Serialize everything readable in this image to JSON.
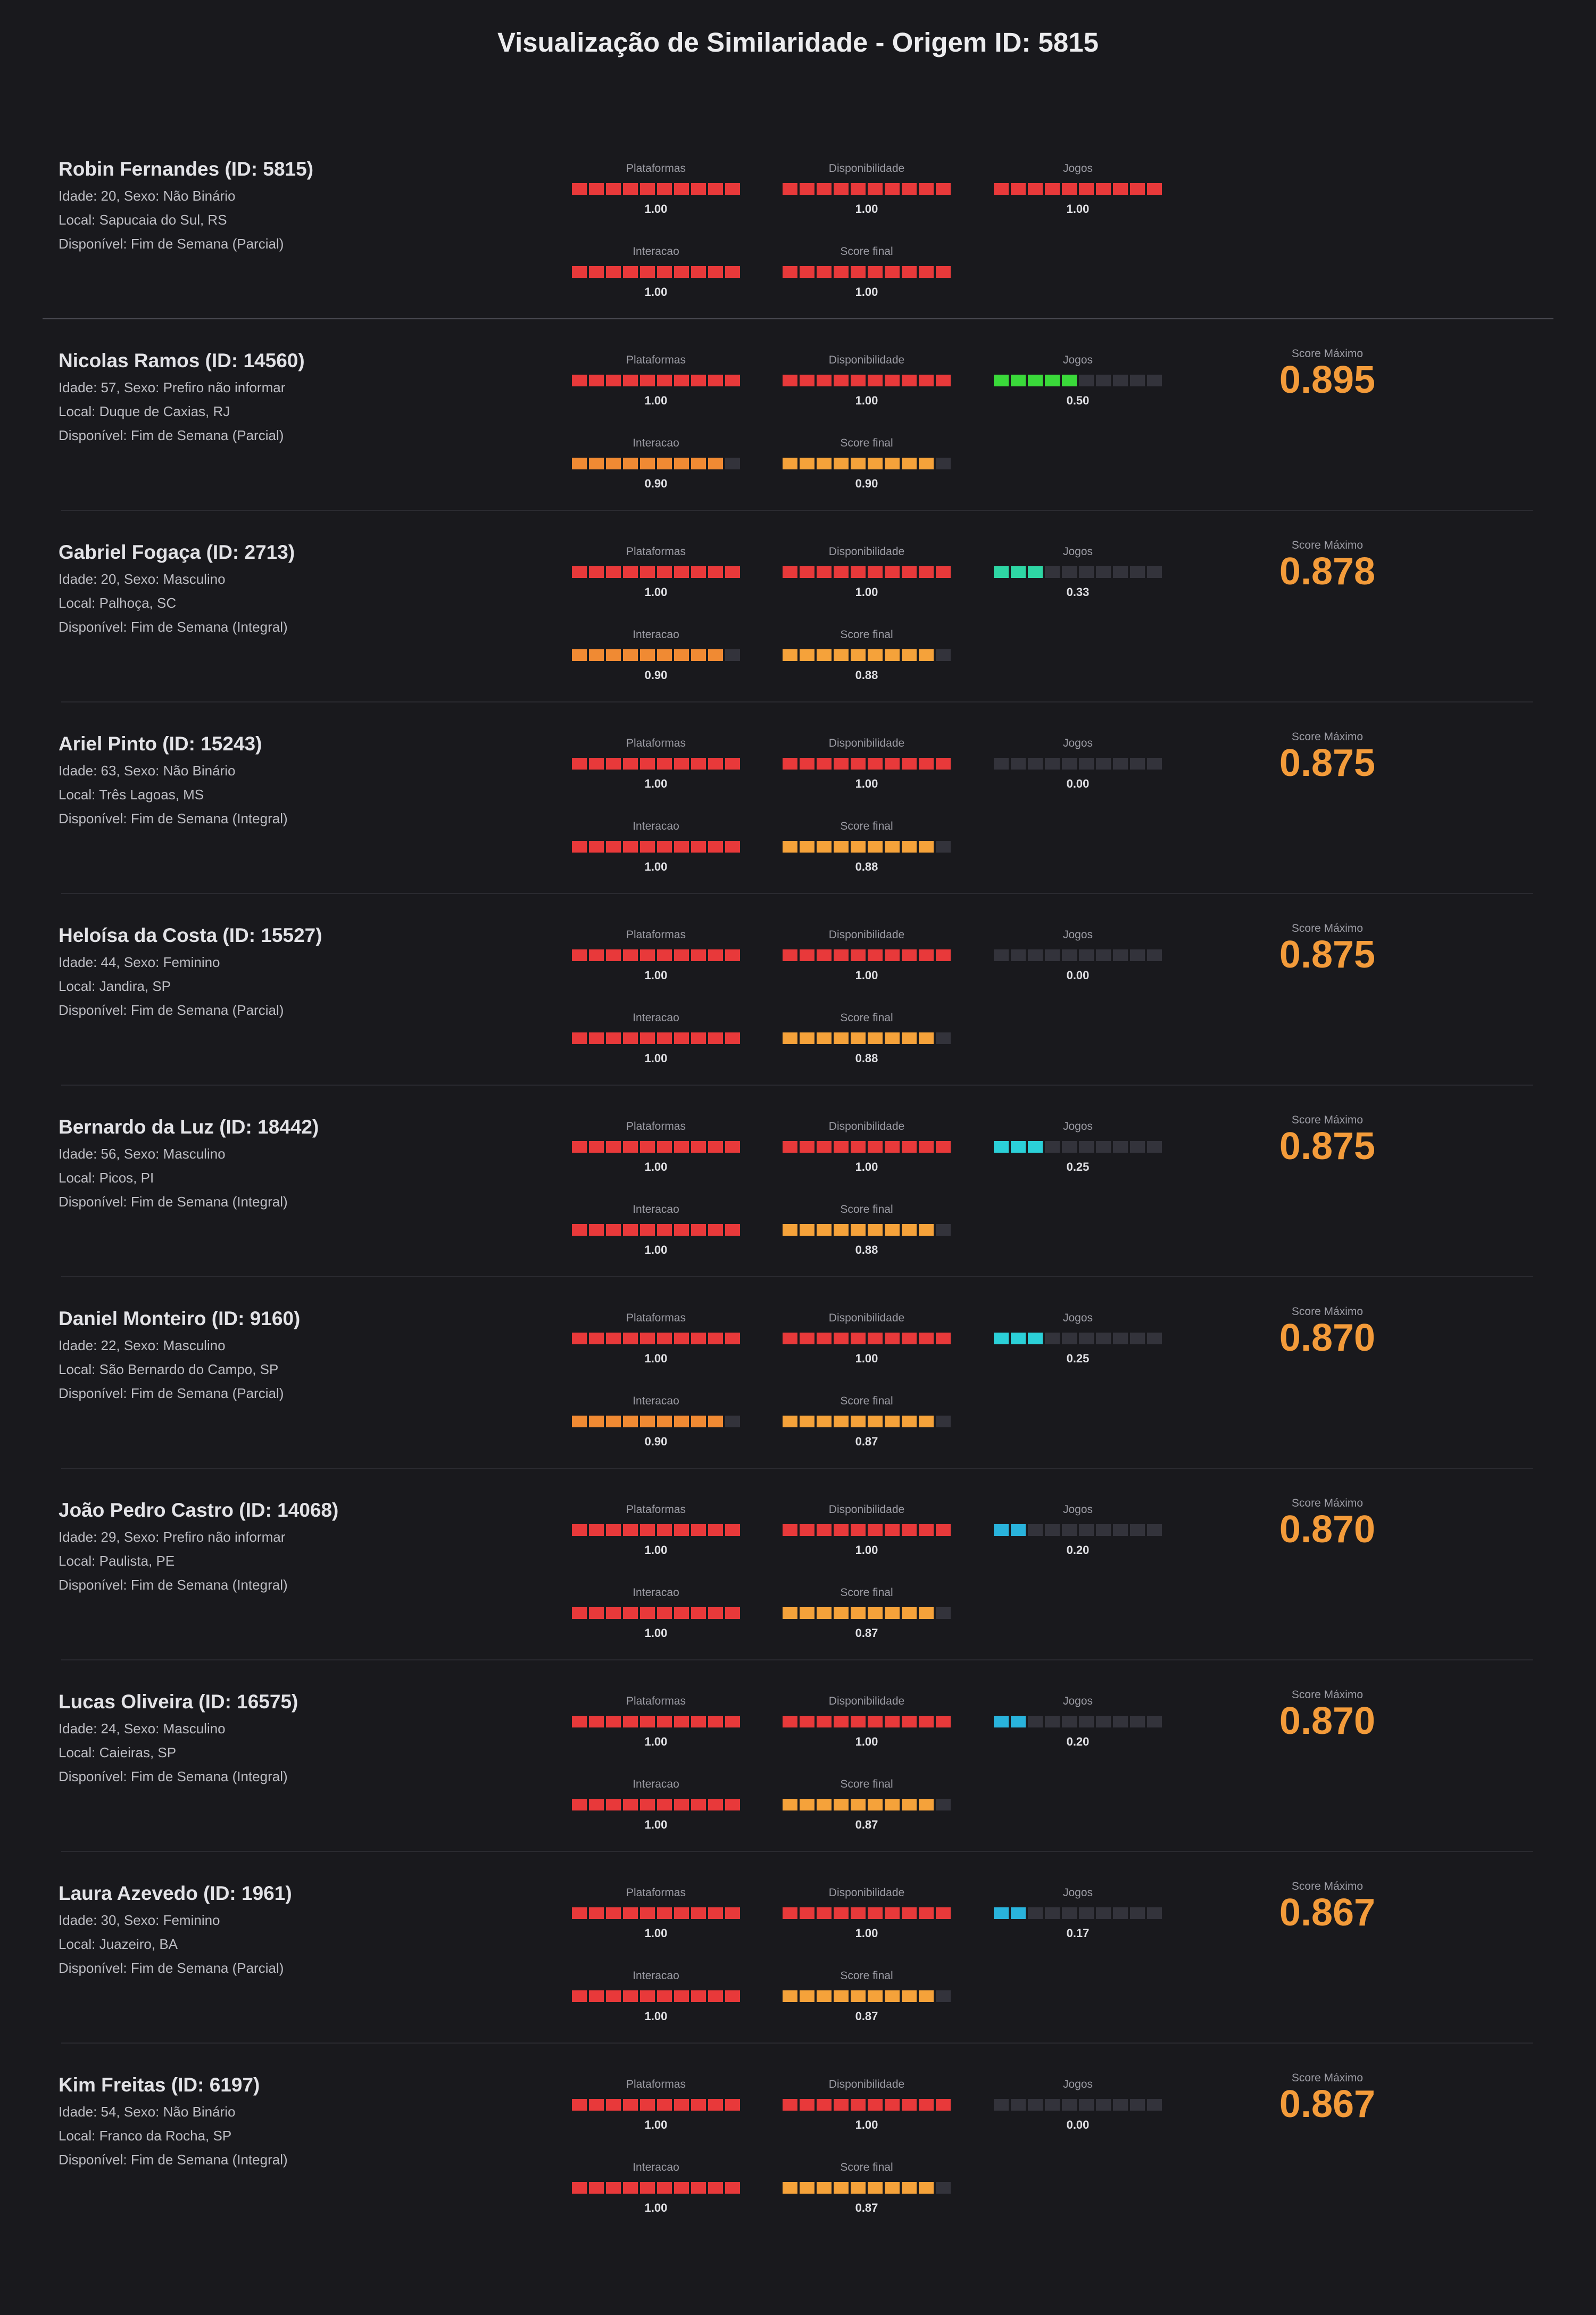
{
  "title": "Visualização de Similaridade - Origem ID: 5815",
  "labels": {
    "plataformas": "Plataformas",
    "disponibilidade": "Disponibilidade",
    "jogos": "Jogos",
    "interacao": "Interacao",
    "score_final": "Score final",
    "score_maximo": "Score Máximo"
  },
  "colors": {
    "red": "#e8393a",
    "orange": "#f08a33",
    "orange_light": "#f5a23a",
    "green": "#3ad93a",
    "teal": "#2ed6a4",
    "cyan": "#2bd0d8",
    "blue_cyan": "#29b3dc",
    "empty": "#33333b",
    "score": "#f39b3a"
  },
  "origin": {
    "name": "Robin Fernandes (ID: 5815)",
    "line1": "Idade: 20, Sexo: Não Binário",
    "line2": "Local: Sapucaia do Sul, RS",
    "line3": "Disponível: Fim de Semana (Parcial)",
    "plataformas": {
      "value": 1.0,
      "text": "1.00",
      "color": "red"
    },
    "disponibilidade": {
      "value": 1.0,
      "text": "1.00",
      "color": "red"
    },
    "jogos": {
      "value": 1.0,
      "text": "1.00",
      "color": "red"
    },
    "interacao": {
      "value": 1.0,
      "text": "1.00",
      "color": "red"
    },
    "score_final": {
      "value": 1.0,
      "text": "1.00",
      "color": "red"
    }
  },
  "matches": [
    {
      "name": "Nicolas Ramos (ID: 14560)",
      "line1": "Idade: 57, Sexo: Prefiro não informar",
      "line2": "Local: Duque de Caxias, RJ",
      "line3": "Disponível: Fim de Semana (Parcial)",
      "plataformas": {
        "value": 1.0,
        "text": "1.00",
        "color": "red"
      },
      "disponibilidade": {
        "value": 1.0,
        "text": "1.00",
        "color": "red"
      },
      "jogos": {
        "value": 0.5,
        "text": "0.50",
        "color": "green"
      },
      "interacao": {
        "value": 0.9,
        "text": "0.90",
        "color": "orange"
      },
      "score_final": {
        "value": 0.9,
        "text": "0.90",
        "color": "orange_light"
      },
      "score_max": "0.895"
    },
    {
      "name": "Gabriel Fogaça (ID: 2713)",
      "line1": "Idade: 20, Sexo: Masculino",
      "line2": "Local: Palhoça, SC",
      "line3": "Disponível: Fim de Semana (Integral)",
      "plataformas": {
        "value": 1.0,
        "text": "1.00",
        "color": "red"
      },
      "disponibilidade": {
        "value": 1.0,
        "text": "1.00",
        "color": "red"
      },
      "jogos": {
        "value": 0.33,
        "text": "0.33",
        "color": "teal"
      },
      "interacao": {
        "value": 0.9,
        "text": "0.90",
        "color": "orange"
      },
      "score_final": {
        "value": 0.88,
        "text": "0.88",
        "color": "orange_light"
      },
      "score_max": "0.878"
    },
    {
      "name": "Ariel Pinto (ID: 15243)",
      "line1": "Idade: 63, Sexo: Não Binário",
      "line2": "Local: Três Lagoas, MS",
      "line3": "Disponível: Fim de Semana (Integral)",
      "plataformas": {
        "value": 1.0,
        "text": "1.00",
        "color": "red"
      },
      "disponibilidade": {
        "value": 1.0,
        "text": "1.00",
        "color": "red"
      },
      "jogos": {
        "value": 0.0,
        "text": "0.00",
        "color": "empty"
      },
      "interacao": {
        "value": 1.0,
        "text": "1.00",
        "color": "red"
      },
      "score_final": {
        "value": 0.88,
        "text": "0.88",
        "color": "orange_light"
      },
      "score_max": "0.875"
    },
    {
      "name": "Heloísa da Costa (ID: 15527)",
      "line1": "Idade: 44, Sexo: Feminino",
      "line2": "Local: Jandira, SP",
      "line3": "Disponível: Fim de Semana (Parcial)",
      "plataformas": {
        "value": 1.0,
        "text": "1.00",
        "color": "red"
      },
      "disponibilidade": {
        "value": 1.0,
        "text": "1.00",
        "color": "red"
      },
      "jogos": {
        "value": 0.0,
        "text": "0.00",
        "color": "empty"
      },
      "interacao": {
        "value": 1.0,
        "text": "1.00",
        "color": "red"
      },
      "score_final": {
        "value": 0.88,
        "text": "0.88",
        "color": "orange_light"
      },
      "score_max": "0.875"
    },
    {
      "name": "Bernardo da Luz (ID: 18442)",
      "line1": "Idade: 56, Sexo: Masculino",
      "line2": "Local: Picos, PI",
      "line3": "Disponível: Fim de Semana (Integral)",
      "plataformas": {
        "value": 1.0,
        "text": "1.00",
        "color": "red"
      },
      "disponibilidade": {
        "value": 1.0,
        "text": "1.00",
        "color": "red"
      },
      "jogos": {
        "value": 0.25,
        "text": "0.25",
        "color": "cyan"
      },
      "interacao": {
        "value": 1.0,
        "text": "1.00",
        "color": "red"
      },
      "score_final": {
        "value": 0.88,
        "text": "0.88",
        "color": "orange_light"
      },
      "score_max": "0.875"
    },
    {
      "name": "Daniel Monteiro (ID: 9160)",
      "line1": "Idade: 22, Sexo: Masculino",
      "line2": "Local: São Bernardo do Campo, SP",
      "line3": "Disponível: Fim de Semana (Parcial)",
      "plataformas": {
        "value": 1.0,
        "text": "1.00",
        "color": "red"
      },
      "disponibilidade": {
        "value": 1.0,
        "text": "1.00",
        "color": "red"
      },
      "jogos": {
        "value": 0.25,
        "text": "0.25",
        "color": "cyan"
      },
      "interacao": {
        "value": 0.9,
        "text": "0.90",
        "color": "orange"
      },
      "score_final": {
        "value": 0.87,
        "text": "0.87",
        "color": "orange_light"
      },
      "score_max": "0.870"
    },
    {
      "name": "João Pedro Castro (ID: 14068)",
      "line1": "Idade: 29, Sexo: Prefiro não informar",
      "line2": "Local: Paulista, PE",
      "line3": "Disponível: Fim de Semana (Integral)",
      "plataformas": {
        "value": 1.0,
        "text": "1.00",
        "color": "red"
      },
      "disponibilidade": {
        "value": 1.0,
        "text": "1.00",
        "color": "red"
      },
      "jogos": {
        "value": 0.2,
        "text": "0.20",
        "color": "blue_cyan"
      },
      "interacao": {
        "value": 1.0,
        "text": "1.00",
        "color": "red"
      },
      "score_final": {
        "value": 0.87,
        "text": "0.87",
        "color": "orange_light"
      },
      "score_max": "0.870"
    },
    {
      "name": "Lucas Oliveira (ID: 16575)",
      "line1": "Idade: 24, Sexo: Masculino",
      "line2": "Local: Caieiras, SP",
      "line3": "Disponível: Fim de Semana (Integral)",
      "plataformas": {
        "value": 1.0,
        "text": "1.00",
        "color": "red"
      },
      "disponibilidade": {
        "value": 1.0,
        "text": "1.00",
        "color": "red"
      },
      "jogos": {
        "value": 0.2,
        "text": "0.20",
        "color": "blue_cyan"
      },
      "interacao": {
        "value": 1.0,
        "text": "1.00",
        "color": "red"
      },
      "score_final": {
        "value": 0.87,
        "text": "0.87",
        "color": "orange_light"
      },
      "score_max": "0.870"
    },
    {
      "name": "Laura Azevedo (ID: 1961)",
      "line1": "Idade: 30, Sexo: Feminino",
      "line2": "Local: Juazeiro, BA",
      "line3": "Disponível: Fim de Semana (Parcial)",
      "plataformas": {
        "value": 1.0,
        "text": "1.00",
        "color": "red"
      },
      "disponibilidade": {
        "value": 1.0,
        "text": "1.00",
        "color": "red"
      },
      "jogos": {
        "value": 0.17,
        "text": "0.17",
        "color": "blue_cyan"
      },
      "interacao": {
        "value": 1.0,
        "text": "1.00",
        "color": "red"
      },
      "score_final": {
        "value": 0.87,
        "text": "0.87",
        "color": "orange_light"
      },
      "score_max": "0.867"
    },
    {
      "name": "Kim Freitas (ID: 6197)",
      "line1": "Idade: 54, Sexo: Não Binário",
      "line2": "Local: Franco da Rocha, SP",
      "line3": "Disponível: Fim de Semana (Integral)",
      "plataformas": {
        "value": 1.0,
        "text": "1.00",
        "color": "red"
      },
      "disponibilidade": {
        "value": 1.0,
        "text": "1.00",
        "color": "red"
      },
      "jogos": {
        "value": 0.0,
        "text": "0.00",
        "color": "empty"
      },
      "interacao": {
        "value": 1.0,
        "text": "1.00",
        "color": "red"
      },
      "score_final": {
        "value": 0.87,
        "text": "0.87",
        "color": "orange_light"
      },
      "score_max": "0.867"
    }
  ]
}
